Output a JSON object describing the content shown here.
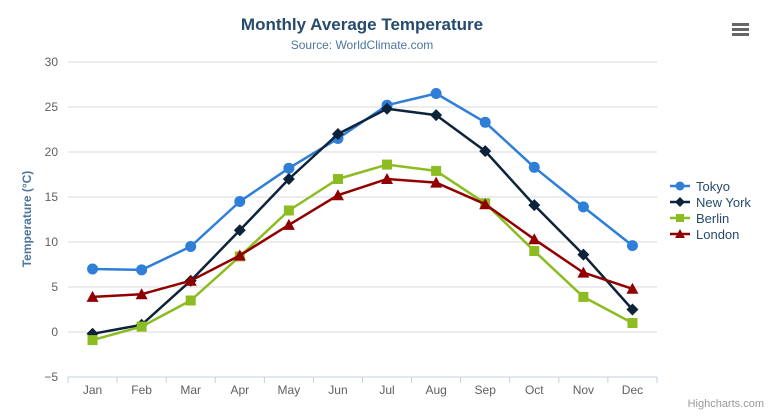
{
  "chart_data": {
    "type": "line",
    "title": "Monthly Average Temperature",
    "subtitle": "Source: WorldClimate.com",
    "xlabel": "",
    "ylabel": "Temperature (°C)",
    "ylim": [
      -5,
      30
    ],
    "ytick_interval": 5,
    "yticks": [
      -5,
      0,
      5,
      10,
      15,
      20,
      25,
      30
    ],
    "grid": true,
    "legend_position": "right",
    "categories": [
      "Jan",
      "Feb",
      "Mar",
      "Apr",
      "May",
      "Jun",
      "Jul",
      "Aug",
      "Sep",
      "Oct",
      "Nov",
      "Dec"
    ],
    "series": [
      {
        "name": "Tokyo",
        "marker": "circle",
        "color": "#2f7ed8",
        "values": [
          7.0,
          6.9,
          9.5,
          14.5,
          18.2,
          21.5,
          25.2,
          26.5,
          23.3,
          18.3,
          13.9,
          9.6
        ]
      },
      {
        "name": "New York",
        "marker": "diamond",
        "color": "#0d233a",
        "values": [
          -0.2,
          0.8,
          5.7,
          11.3,
          17.0,
          22.0,
          24.8,
          24.1,
          20.1,
          14.1,
          8.6,
          2.5
        ]
      },
      {
        "name": "Berlin",
        "marker": "square",
        "color": "#8bbc21",
        "values": [
          -0.9,
          0.6,
          3.5,
          8.4,
          13.5,
          17.0,
          18.6,
          17.9,
          14.3,
          9.0,
          3.9,
          1.0
        ]
      },
      {
        "name": "London",
        "marker": "triangle",
        "color": "#910000",
        "values": [
          3.9,
          4.2,
          5.7,
          8.5,
          11.9,
          15.2,
          17.0,
          16.6,
          14.2,
          10.3,
          6.6,
          4.8
        ]
      }
    ]
  },
  "styles": {
    "grid_color": "#d8d8d8",
    "axis_line_color": "#c0d0e0",
    "tick_color": "#c0d0e0",
    "axis_label_color": "#606060",
    "title_color": "#274b6d",
    "subtitle_color": "#4d759e",
    "legend_text_color": "#274b6d",
    "credits_color": "#999999",
    "export_icon_color": "#666666"
  },
  "export_menu": {
    "icon": "hamburger-icon"
  },
  "credits": {
    "label": "Highcharts.com"
  }
}
